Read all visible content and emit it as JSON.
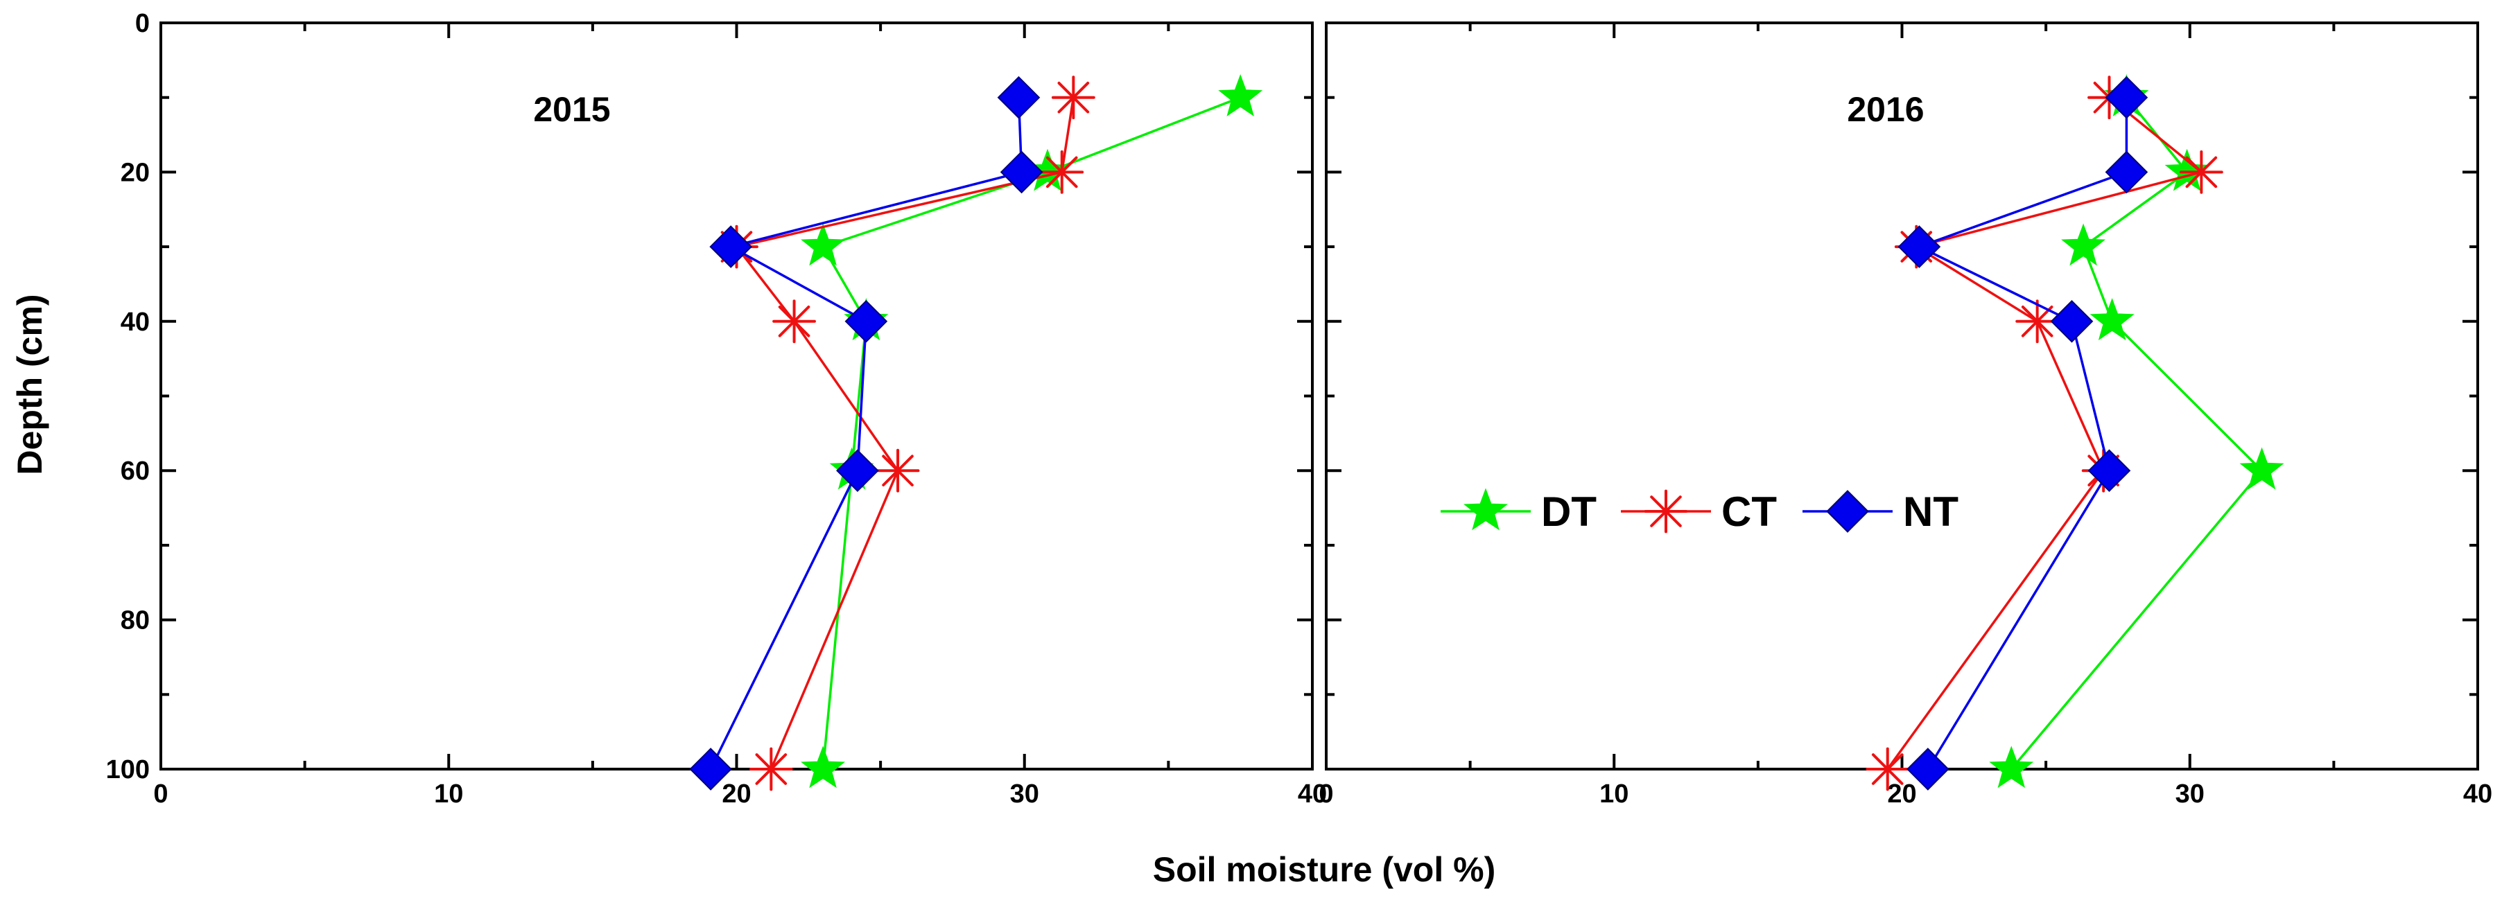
{
  "chart_data": {
    "type": "line",
    "xlabel": "Soil moisture (vol %)",
    "ylabel": "Depth (cm)",
    "xlim": [
      0,
      40
    ],
    "ylim": [
      0,
      100
    ],
    "y_inverted": true,
    "x_ticks": [
      "0",
      "10",
      "20",
      "30",
      "40"
    ],
    "y_ticks": [
      "0",
      "20",
      "40",
      "60",
      "80",
      "100"
    ],
    "depths": [
      10,
      20,
      30,
      40,
      60,
      100
    ],
    "legend": {
      "placement": "inside right panel, center-left",
      "entries": [
        "DT",
        "CT",
        "NT"
      ]
    },
    "colors": {
      "DT": "#00ee00",
      "CT": "#ee1111",
      "NT": "#0000ee",
      "axis": "#000000"
    },
    "panels": [
      {
        "title": "2015",
        "series": [
          {
            "name": "DT",
            "marker": "star",
            "values": [
              37.5,
              30.8,
              23.0,
              24.5,
              24.0,
              23.0
            ]
          },
          {
            "name": "CT",
            "marker": "asterisk",
            "values": [
              31.7,
              31.3,
              20.0,
              22.0,
              25.6,
              21.2
            ]
          },
          {
            "name": "NT",
            "marker": "diamond",
            "values": [
              29.8,
              29.9,
              19.8,
              24.5,
              24.2,
              19.1
            ]
          }
        ]
      },
      {
        "title": "2016",
        "series": [
          {
            "name": "DT",
            "marker": "star",
            "values": [
              27.8,
              29.9,
              26.3,
              27.3,
              32.5,
              23.8
            ]
          },
          {
            "name": "CT",
            "marker": "asterisk",
            "values": [
              27.2,
              30.4,
              20.5,
              24.7,
              27.0,
              19.5
            ]
          },
          {
            "name": "NT",
            "marker": "diamond",
            "values": [
              27.8,
              27.8,
              20.6,
              25.9,
              27.2,
              20.9
            ]
          }
        ]
      }
    ]
  }
}
